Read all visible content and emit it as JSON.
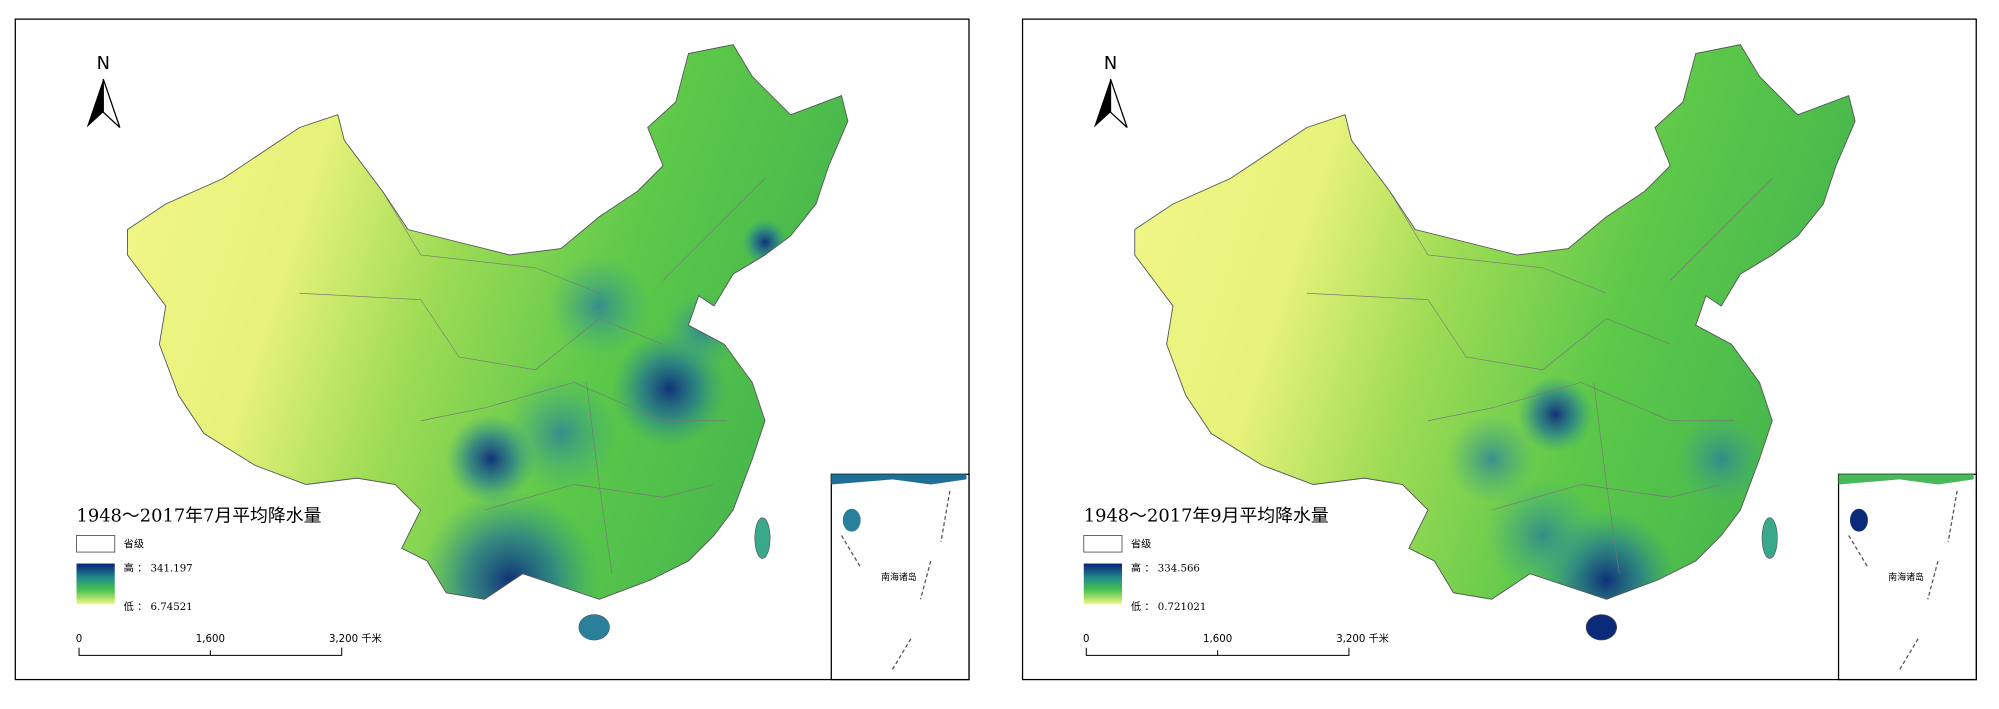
{
  "panels": [
    {
      "north": "N",
      "title": "1948～2017年7月平均降水量",
      "legend": {
        "province": "省级",
        "high": "高 ： 341.197",
        "low": "低 ： 6.74521"
      },
      "scale": {
        "start": "0",
        "mid": "1,600",
        "end": "3,200 千米"
      },
      "inset_label": "南海诸岛"
    },
    {
      "north": "N",
      "title": "1948～2017年9月平均降水量",
      "legend": {
        "province": "省级",
        "high": "高 ： 334.566",
        "low": "低 ： 0.721021"
      },
      "scale": {
        "start": "0",
        "mid": "1,600",
        "end": "3,200 千米"
      },
      "inset_label": "南海诸岛"
    }
  ]
}
